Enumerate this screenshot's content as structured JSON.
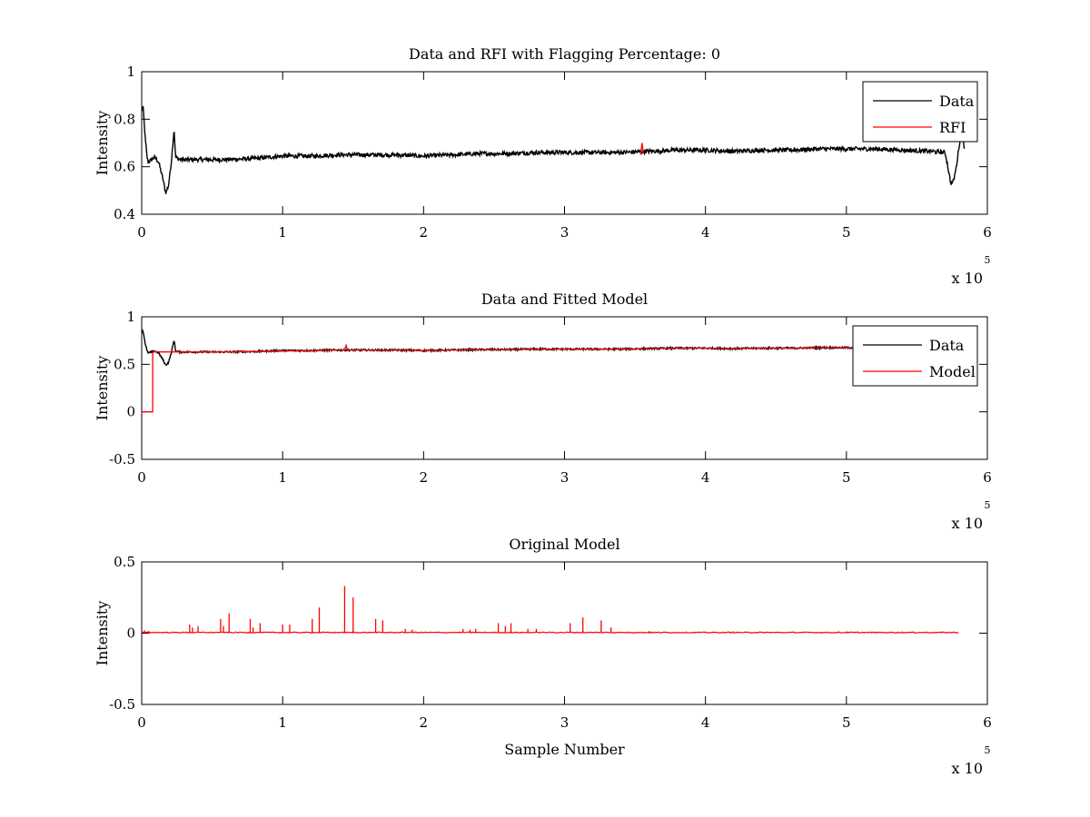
{
  "chart_data": [
    {
      "type": "line",
      "title": "Data and RFI with Flagging Percentage: 0",
      "xlabel": "",
      "ylabel": "Intensity",
      "xlim": [
        0,
        600000
      ],
      "ylim": [
        0.4,
        1
      ],
      "xticks": [
        0,
        100000,
        200000,
        300000,
        400000,
        500000,
        600000
      ],
      "xtick_labels": [
        "0",
        "1",
        "2",
        "3",
        "4",
        "5",
        "6"
      ],
      "yticks": [
        0.4,
        0.6,
        0.8,
        1
      ],
      "ytick_labels": [
        "0.4",
        "0.6",
        "0.8",
        "1"
      ],
      "x_multiplier": {
        "base": "x 10",
        "exponent": "5"
      },
      "grid": false,
      "legend_position": "top-right",
      "series": [
        {
          "name": "Data",
          "color": "#000000",
          "x": [
            0,
            1000,
            2500,
            4000,
            5000,
            7000,
            9000,
            12000,
            15000,
            17000,
            19000,
            21000,
            23000,
            24000,
            27000,
            40000,
            60000,
            80000,
            100000,
            120000,
            140000,
            160000,
            180000,
            200000,
            220000,
            240000,
            260000,
            280000,
            300000,
            320000,
            340000,
            360000,
            380000,
            400000,
            420000,
            440000,
            460000,
            480000,
            500000,
            520000,
            540000,
            560000,
            570000,
            572000,
            574000,
            576000,
            578000,
            580000,
            582000,
            584000
          ],
          "y": [
            0.84,
            0.85,
            0.72,
            0.63,
            0.62,
            0.63,
            0.64,
            0.62,
            0.55,
            0.49,
            0.52,
            0.62,
            0.76,
            0.64,
            0.63,
            0.63,
            0.63,
            0.635,
            0.645,
            0.645,
            0.65,
            0.65,
            0.65,
            0.645,
            0.65,
            0.655,
            0.655,
            0.66,
            0.66,
            0.66,
            0.66,
            0.665,
            0.67,
            0.67,
            0.665,
            0.67,
            0.67,
            0.675,
            0.675,
            0.675,
            0.67,
            0.665,
            0.66,
            0.6,
            0.53,
            0.54,
            0.6,
            0.69,
            0.74,
            0.67
          ]
        },
        {
          "name": "RFI",
          "color": "#ff0000",
          "x": [
            354000,
            355000,
            356000
          ],
          "y": [
            0.65,
            0.7,
            0.66
          ]
        }
      ]
    },
    {
      "type": "line",
      "title": "Data and Fitted Model",
      "xlabel": "",
      "ylabel": "Intensity",
      "xlim": [
        0,
        600000
      ],
      "ylim": [
        -0.5,
        1
      ],
      "xticks": [
        0,
        100000,
        200000,
        300000,
        400000,
        500000,
        600000
      ],
      "xtick_labels": [
        "0",
        "1",
        "2",
        "3",
        "4",
        "5",
        "6"
      ],
      "yticks": [
        -0.5,
        0,
        0.5,
        1
      ],
      "ytick_labels": [
        "-0.5",
        "0",
        "0.5",
        "1"
      ],
      "x_multiplier": {
        "base": "x 10",
        "exponent": "5"
      },
      "grid": false,
      "legend_position": "top-right",
      "series": [
        {
          "name": "Data",
          "color": "#000000",
          "x": [
            0,
            1000,
            2500,
            4000,
            5000,
            7000,
            9000,
            12000,
            15000,
            17000,
            19000,
            21000,
            23000,
            24000,
            27000,
            40000,
            60000,
            80000,
            100000,
            120000,
            140000,
            160000,
            180000,
            200000,
            220000,
            240000,
            260000,
            280000,
            300000,
            320000,
            340000,
            360000,
            380000,
            400000,
            420000,
            440000,
            460000,
            480000,
            500000,
            520000,
            540000,
            560000,
            570000,
            580000
          ],
          "y": [
            0.84,
            0.85,
            0.72,
            0.63,
            0.62,
            0.63,
            0.64,
            0.62,
            0.55,
            0.49,
            0.52,
            0.62,
            0.76,
            0.64,
            0.63,
            0.63,
            0.63,
            0.635,
            0.645,
            0.645,
            0.65,
            0.65,
            0.65,
            0.645,
            0.65,
            0.655,
            0.655,
            0.66,
            0.66,
            0.66,
            0.66,
            0.665,
            0.67,
            0.67,
            0.665,
            0.67,
            0.67,
            0.675,
            0.675,
            0.675,
            0.67,
            0.665,
            0.66,
            0.665
          ]
        },
        {
          "name": "Model",
          "color": "#ff0000",
          "x": [
            0,
            7800,
            7801,
            8000,
            20000,
            40000,
            60000,
            80000,
            100000,
            120000,
            140000,
            144000,
            145000,
            146000,
            160000,
            180000,
            200000,
            220000,
            240000,
            260000,
            280000,
            300000,
            320000,
            340000,
            360000,
            380000,
            400000,
            420000,
            440000,
            460000,
            480000,
            500000,
            520000,
            540000,
            560000,
            580000
          ],
          "y": [
            0,
            0,
            0.62,
            0.63,
            0.63,
            0.63,
            0.63,
            0.635,
            0.64,
            0.645,
            0.65,
            0.65,
            0.7,
            0.65,
            0.65,
            0.65,
            0.645,
            0.65,
            0.655,
            0.655,
            0.66,
            0.66,
            0.66,
            0.66,
            0.665,
            0.67,
            0.67,
            0.665,
            0.67,
            0.67,
            0.675,
            0.675,
            0.675,
            0.67,
            0.665,
            0.665
          ]
        }
      ]
    },
    {
      "type": "line",
      "title": "Original Model",
      "xlabel": "Sample Number",
      "ylabel": "Intensity",
      "xlim": [
        0,
        600000
      ],
      "ylim": [
        -0.5,
        0.5
      ],
      "xticks": [
        0,
        100000,
        200000,
        300000,
        400000,
        500000,
        600000
      ],
      "xtick_labels": [
        "0",
        "1",
        "2",
        "3",
        "4",
        "5",
        "6"
      ],
      "yticks": [
        -0.5,
        0,
        0.5
      ],
      "ytick_labels": [
        "-0.5",
        "0",
        "0.5"
      ],
      "x_multiplier": {
        "base": "x 10",
        "exponent": "5"
      },
      "grid": false,
      "legend_position": "none",
      "series": [
        {
          "color": "#ff0000",
          "baseline_x": [
            0,
            580000
          ],
          "baseline_y": 0.005,
          "spikes": [
            {
              "x": 2000,
              "y": 0.02
            },
            {
              "x": 5000,
              "y": 0.015
            },
            {
              "x": 34000,
              "y": 0.06
            },
            {
              "x": 36000,
              "y": 0.04
            },
            {
              "x": 40000,
              "y": 0.05
            },
            {
              "x": 56000,
              "y": 0.1
            },
            {
              "x": 58000,
              "y": 0.05
            },
            {
              "x": 62000,
              "y": 0.14
            },
            {
              "x": 77000,
              "y": 0.1
            },
            {
              "x": 79000,
              "y": 0.04
            },
            {
              "x": 84000,
              "y": 0.07
            },
            {
              "x": 100000,
              "y": 0.06
            },
            {
              "x": 105000,
              "y": 0.06
            },
            {
              "x": 121000,
              "y": 0.1
            },
            {
              "x": 126000,
              "y": 0.18
            },
            {
              "x": 144000,
              "y": 0.33
            },
            {
              "x": 150000,
              "y": 0.25
            },
            {
              "x": 166000,
              "y": 0.1
            },
            {
              "x": 171000,
              "y": 0.09
            },
            {
              "x": 187000,
              "y": 0.03
            },
            {
              "x": 192000,
              "y": 0.025
            },
            {
              "x": 228000,
              "y": 0.03
            },
            {
              "x": 233000,
              "y": 0.025
            },
            {
              "x": 237000,
              "y": 0.03
            },
            {
              "x": 253000,
              "y": 0.07
            },
            {
              "x": 258000,
              "y": 0.05
            },
            {
              "x": 262000,
              "y": 0.07
            },
            {
              "x": 274000,
              "y": 0.03
            },
            {
              "x": 280000,
              "y": 0.03
            },
            {
              "x": 304000,
              "y": 0.07
            },
            {
              "x": 313000,
              "y": 0.11
            },
            {
              "x": 326000,
              "y": 0.09
            },
            {
              "x": 333000,
              "y": 0.04
            },
            {
              "x": 360000,
              "y": 0.015
            },
            {
              "x": 420000,
              "y": 0.012
            },
            {
              "x": 500000,
              "y": 0.012
            }
          ]
        }
      ]
    }
  ]
}
